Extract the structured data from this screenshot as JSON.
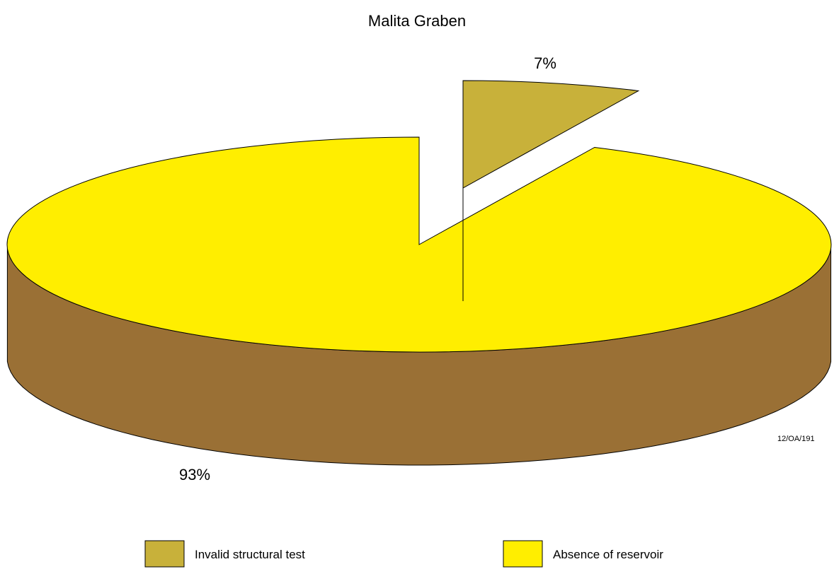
{
  "chart_data": {
    "type": "pie",
    "title": "Malita Graben",
    "slices": [
      {
        "label": "Invalid structural test",
        "value": 7,
        "display": "7%",
        "color": "#c8b13a",
        "side_color": "#6b6b40",
        "exploded": true
      },
      {
        "label": "Absence of reservoir",
        "value": 93,
        "display": "93%",
        "color": "#ffee00",
        "side_color": "#9a7035",
        "exploded": false
      }
    ],
    "legend": [
      {
        "label": "Invalid structural test",
        "color": "#c8b13a"
      },
      {
        "label": "Absence of reservoir",
        "color": "#ffee00"
      }
    ],
    "legend_position": "bottom",
    "style": "3d"
  },
  "annotations": {
    "reference_code": "12/OA/191"
  }
}
